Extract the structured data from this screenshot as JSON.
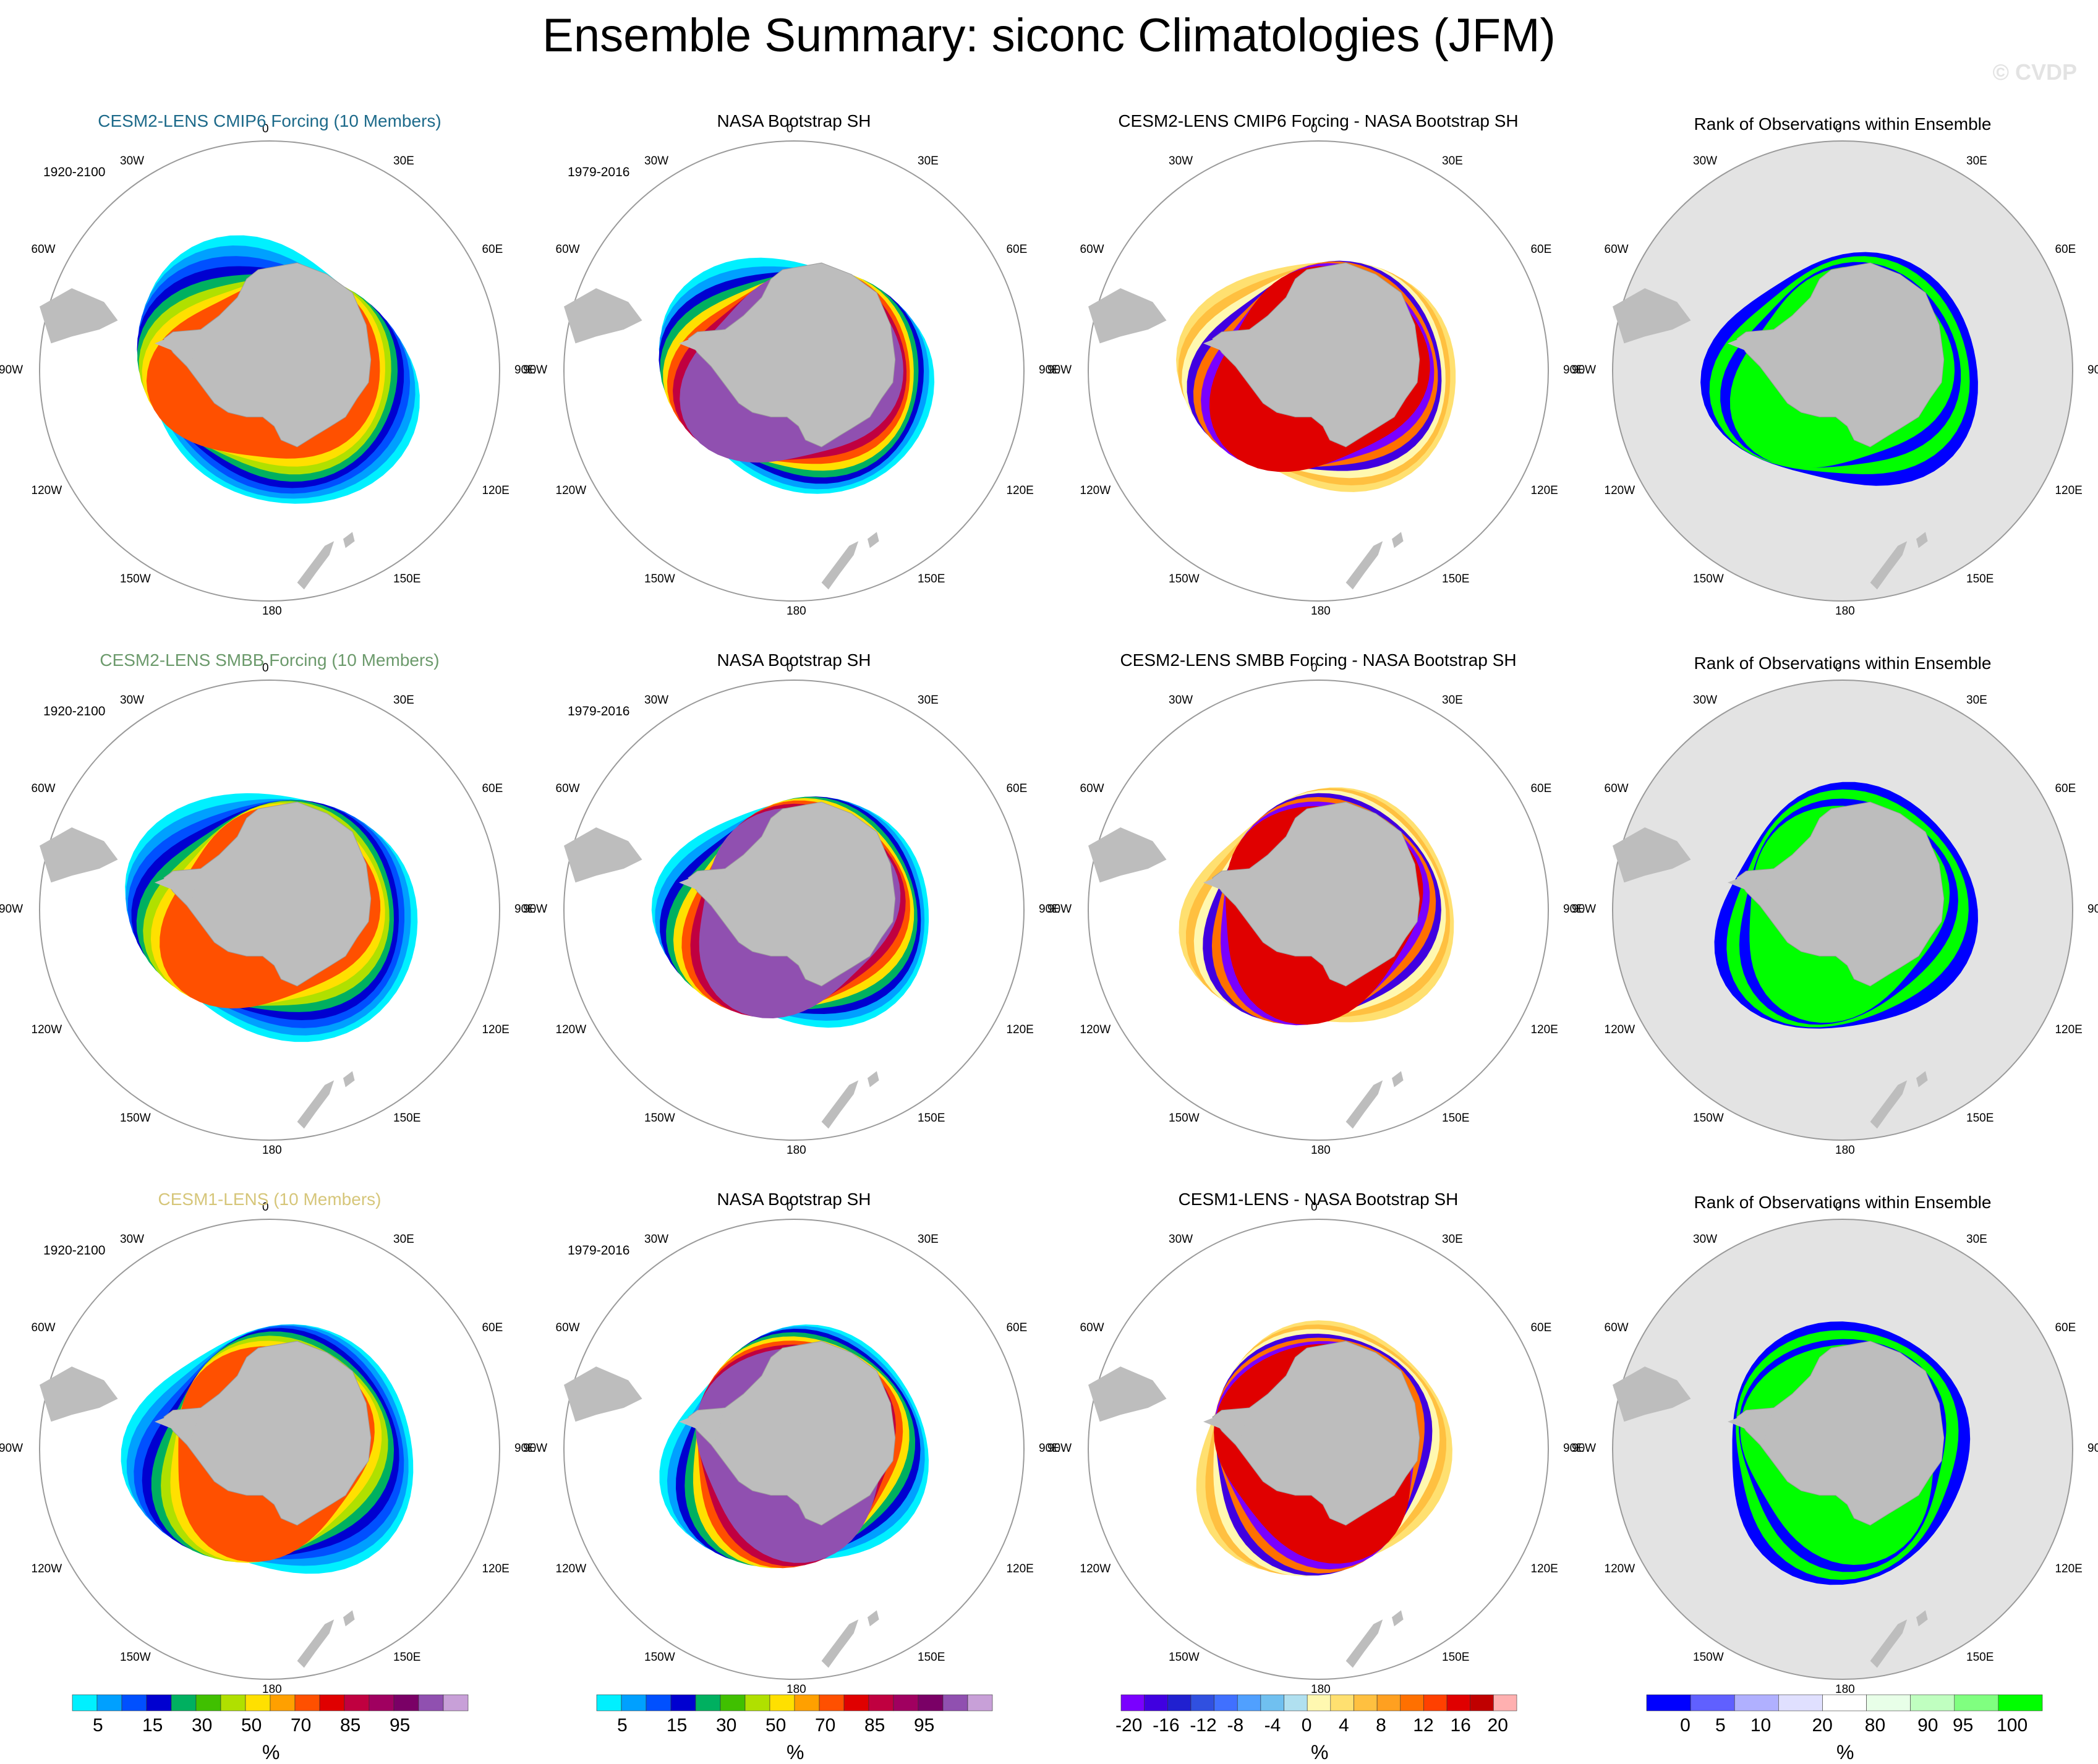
{
  "title": "Ensemble Summary: siconc Climatologies (JFM)",
  "credit": "© CVDP",
  "colors": {
    "title_row1": "#1d6a8a",
    "title_row2": "#6c9a6c",
    "title_row3": "#d6c67a",
    "land": "#bdbdbd",
    "rank_background": "#e3e3e3"
  },
  "lon_labels": [
    "0",
    "30E",
    "60E",
    "90E",
    "120E",
    "150E",
    "180",
    "150W",
    "120W",
    "90W",
    "60W",
    "30W"
  ],
  "rows": [
    {
      "model_title": "CESM2-LENS CMIP6 Forcing (10 Members)",
      "model_period": "1920-2100",
      "obs_title": "NASA Bootstrap SH",
      "obs_period": "1979-2016",
      "diff_title": "CESM2-LENS CMIP6 Forcing - NASA Bootstrap SH",
      "rank_title": "Rank of Observations within Ensemble"
    },
    {
      "model_title": "CESM2-LENS SMBB Forcing (10 Members)",
      "model_period": "1920-2100",
      "obs_title": "NASA Bootstrap SH",
      "obs_period": "1979-2016",
      "diff_title": "CESM2-LENS SMBB Forcing - NASA Bootstrap SH",
      "rank_title": "Rank of Observations within Ensemble"
    },
    {
      "model_title": "CESM1-LENS (10 Members)",
      "model_period": "1920-2100",
      "obs_title": "NASA Bootstrap SH",
      "obs_period": "1979-2016",
      "diff_title": "CESM1-LENS - NASA Bootstrap SH",
      "rank_title": "Rank of Observations within Ensemble"
    }
  ],
  "colorbars": [
    {
      "name": "concentration",
      "colors": [
        "#00f0ff",
        "#00a0ff",
        "#0050ff",
        "#0000d0",
        "#00b060",
        "#40c000",
        "#b0e000",
        "#ffe000",
        "#ffa000",
        "#ff5000",
        "#e00000",
        "#c00040",
        "#a00060",
        "#7a0066",
        "#9050b0",
        "#c8a0d8"
      ],
      "ticks": [
        "5",
        "15",
        "30",
        "50",
        "70",
        "85",
        "95"
      ],
      "unit": "%"
    },
    {
      "name": "concentration",
      "colors": [
        "#00f0ff",
        "#00a0ff",
        "#0050ff",
        "#0000d0",
        "#00b060",
        "#40c000",
        "#b0e000",
        "#ffe000",
        "#ffa000",
        "#ff5000",
        "#e00000",
        "#c00040",
        "#a00060",
        "#7a0066",
        "#9050b0",
        "#c8a0d8"
      ],
      "ticks": [
        "5",
        "15",
        "30",
        "50",
        "70",
        "85",
        "95"
      ],
      "unit": "%"
    },
    {
      "name": "difference",
      "colors": [
        "#7a00ff",
        "#4000e0",
        "#2020d0",
        "#3050e0",
        "#4070ff",
        "#50a0ff",
        "#70c0f0",
        "#b0e0f0",
        "#fff8b0",
        "#ffe070",
        "#ffc040",
        "#ffa020",
        "#ff7000",
        "#ff4000",
        "#e00000",
        "#c00000",
        "#ffb0b0"
      ],
      "ticks": [
        "-20",
        "-16",
        "-12",
        "-8",
        "-4",
        "0",
        "4",
        "8",
        "12",
        "16",
        "20"
      ],
      "unit": "%"
    },
    {
      "name": "rank",
      "colors": [
        "#0000ff",
        "#6060ff",
        "#b0b0ff",
        "#e0e0ff",
        "#ffffff",
        "#e8ffe8",
        "#c0ffc0",
        "#80ff80",
        "#00ff00"
      ],
      "ticks": [
        "0",
        "5",
        "10",
        "20",
        "80",
        "90",
        "95",
        "100"
      ],
      "unit": "%"
    }
  ],
  "chart_data": [
    {
      "type": "heatmap",
      "panel": "CESM2-LENS CMIP6 Forcing (10 Members)",
      "variable": "siconc",
      "season": "JFM",
      "period": "1920-2100",
      "levels": [
        5,
        10,
        15,
        20,
        30,
        40,
        50,
        60,
        70,
        80,
        85,
        90,
        95,
        97,
        99,
        100
      ],
      "unit": "%"
    },
    {
      "type": "heatmap",
      "panel": "NASA Bootstrap SH",
      "variable": "siconc",
      "season": "JFM",
      "period": "1979-2016",
      "levels": [
        5,
        10,
        15,
        20,
        30,
        40,
        50,
        60,
        70,
        80,
        85,
        90,
        95,
        97,
        99,
        100
      ],
      "unit": "%"
    },
    {
      "type": "heatmap",
      "panel": "CESM2-LENS CMIP6 Forcing - NASA Bootstrap SH",
      "levels": [
        -20,
        -18,
        -16,
        -14,
        -12,
        -10,
        -8,
        -6,
        -4,
        -2,
        0,
        2,
        4,
        6,
        8,
        10,
        12,
        14,
        16,
        18,
        20
      ],
      "unit": "%"
    },
    {
      "type": "heatmap",
      "panel": "Rank of Observations within Ensemble",
      "levels": [
        0,
        5,
        10,
        20,
        80,
        90,
        95,
        100
      ],
      "unit": "%"
    },
    {
      "type": "heatmap",
      "panel": "CESM2-LENS SMBB Forcing (10 Members)",
      "variable": "siconc",
      "season": "JFM",
      "period": "1920-2100",
      "unit": "%"
    },
    {
      "type": "heatmap",
      "panel": "NASA Bootstrap SH",
      "variable": "siconc",
      "season": "JFM",
      "period": "1979-2016",
      "unit": "%"
    },
    {
      "type": "heatmap",
      "panel": "CESM2-LENS SMBB Forcing - NASA Bootstrap SH",
      "unit": "%"
    },
    {
      "type": "heatmap",
      "panel": "Rank of Observations within Ensemble",
      "unit": "%"
    },
    {
      "type": "heatmap",
      "panel": "CESM1-LENS (10 Members)",
      "variable": "siconc",
      "season": "JFM",
      "period": "1920-2100",
      "unit": "%"
    },
    {
      "type": "heatmap",
      "panel": "NASA Bootstrap SH",
      "variable": "siconc",
      "season": "JFM",
      "period": "1979-2016",
      "unit": "%"
    },
    {
      "type": "heatmap",
      "panel": "CESM1-LENS - NASA Bootstrap SH",
      "unit": "%"
    },
    {
      "type": "heatmap",
      "panel": "Rank of Observations within Ensemble",
      "unit": "%"
    }
  ]
}
